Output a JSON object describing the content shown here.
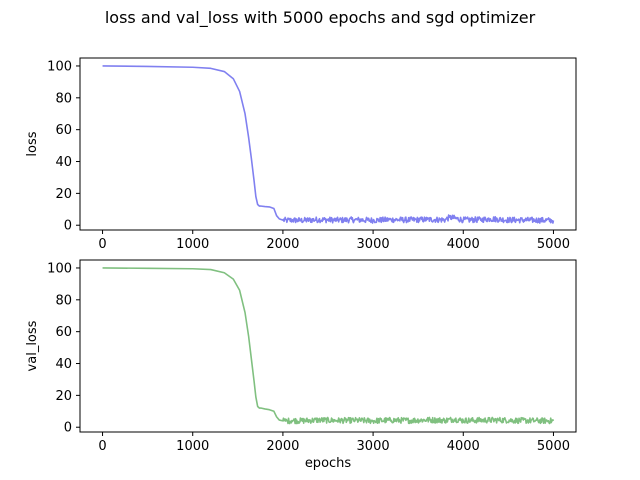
{
  "figure": {
    "title": "loss and val_loss with 5000 epochs and sgd optimizer"
  },
  "chart_data": [
    {
      "type": "line",
      "title": "",
      "xlabel": "",
      "ylabel": "loss",
      "xlim": [
        -250,
        5250
      ],
      "ylim": [
        -3,
        105
      ],
      "xticks": [
        0,
        1000,
        2000,
        3000,
        4000,
        5000
      ],
      "xtick_labels": [
        "0",
        "1000",
        "2000",
        "3000",
        "4000",
        "5000"
      ],
      "yticks": [
        0,
        20,
        40,
        60,
        80,
        100
      ],
      "ytick_labels": [
        "0",
        "20",
        "40",
        "60",
        "80",
        "100"
      ],
      "grid": false,
      "color": "#8080f0",
      "series": [
        {
          "x": [
            0,
            500,
            1000,
            1200,
            1350,
            1450,
            1520,
            1580,
            1620,
            1650,
            1680,
            1700,
            1720,
            1740,
            1760,
            1800,
            1850,
            1900,
            1930,
            1960,
            2000,
            2050,
            2100,
            2200,
            2400,
            2600,
            2800,
            3000,
            3200,
            3400,
            3600,
            3800,
            3850,
            4000,
            4200,
            4300,
            4500,
            4800,
            5000
          ],
          "values": [
            100,
            99.7,
            99.2,
            98.5,
            96.5,
            92,
            84,
            70,
            55,
            42,
            28,
            18,
            13,
            12,
            12,
            11.7,
            11.5,
            10.5,
            6,
            4,
            3.2,
            3,
            3.2,
            3,
            3.5,
            3.2,
            3.4,
            3.1,
            3.5,
            3.3,
            3.6,
            3.4,
            5,
            3.3,
            3.5,
            4,
            3.3,
            3.2,
            3
          ]
        }
      ]
    },
    {
      "type": "line",
      "title": "",
      "xlabel": "epochs",
      "ylabel": "val_loss",
      "xlim": [
        -250,
        5250
      ],
      "ylim": [
        -3,
        105
      ],
      "xticks": [
        0,
        1000,
        2000,
        3000,
        4000,
        5000
      ],
      "xtick_labels": [
        "0",
        "1000",
        "2000",
        "3000",
        "4000",
        "5000"
      ],
      "yticks": [
        0,
        20,
        40,
        60,
        80,
        100
      ],
      "ytick_labels": [
        "0",
        "20",
        "40",
        "60",
        "80",
        "100"
      ],
      "grid": false,
      "color": "#80c080",
      "series": [
        {
          "x": [
            0,
            500,
            1000,
            1200,
            1350,
            1450,
            1520,
            1580,
            1620,
            1650,
            1680,
            1700,
            1720,
            1740,
            1760,
            1800,
            1850,
            1900,
            1930,
            1960,
            2000,
            2050,
            2100,
            2200,
            2400,
            2600,
            2800,
            3000,
            3200,
            3400,
            3600,
            3800,
            3900,
            4000,
            4200,
            4400,
            4600,
            4800,
            5000
          ],
          "values": [
            100,
            99.8,
            99.5,
            99,
            97,
            93,
            86,
            72,
            57,
            43,
            29,
            19,
            13,
            12,
            12,
            11.5,
            11,
            10,
            6.5,
            4.5,
            4,
            4,
            4.2,
            4,
            4.5,
            4.2,
            4.3,
            4,
            4.4,
            4.2,
            4.6,
            4.3,
            5,
            4.2,
            4.4,
            4.5,
            4.2,
            4.1,
            4
          ]
        }
      ]
    }
  ]
}
